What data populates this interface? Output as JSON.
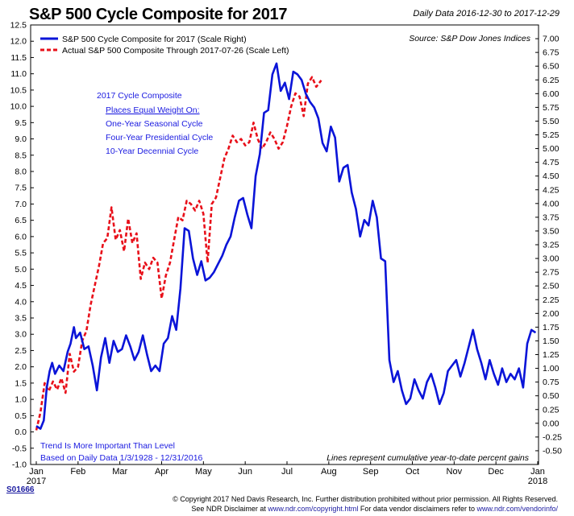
{
  "header": {
    "title": "S&P 500 Cycle Composite for 2017",
    "date_range": "Daily Data 2016-12-30 to 2017-12-29"
  },
  "chart_data": {
    "type": "line",
    "title": "S&P 500 Cycle Composite for 2017",
    "x_tick_labels": [
      "Jan",
      "Feb",
      "Mar",
      "Apr",
      "May",
      "Jun",
      "Jul",
      "Aug",
      "Sep",
      "Oct",
      "Nov",
      "Dec",
      "Jan"
    ],
    "x_year_labels": [
      "2017",
      "2018"
    ],
    "left_axis": {
      "ylim": [
        -1.0,
        12.5
      ],
      "ticks": [
        -1.0,
        -0.5,
        0.0,
        0.5,
        1.0,
        1.5,
        2.0,
        2.5,
        3.0,
        3.5,
        4.0,
        4.5,
        5.0,
        5.5,
        6.0,
        6.5,
        7.0,
        7.5,
        8.0,
        8.5,
        9.0,
        9.5,
        10.0,
        10.5,
        11.0,
        11.5,
        12.0,
        12.5
      ]
    },
    "right_axis": {
      "ylim": [
        -0.75,
        7.25
      ],
      "ticks": [
        -0.5,
        -0.25,
        0.0,
        0.25,
        0.5,
        0.75,
        1.0,
        1.25,
        1.5,
        1.75,
        2.0,
        2.25,
        2.5,
        2.75,
        3.0,
        3.25,
        3.5,
        3.75,
        4.0,
        4.25,
        4.5,
        4.75,
        5.0,
        5.25,
        5.5,
        5.75,
        6.0,
        6.25,
        6.5,
        6.75,
        7.0
      ]
    },
    "grid": false,
    "legend_position": "top-left",
    "series": [
      {
        "name": "S&P 500 Cycle Composite for 2017 (Scale Right)",
        "axis": "right",
        "color": "#0a14d8",
        "style": "solid",
        "x": [
          0.0,
          0.1,
          0.18,
          0.25,
          0.32,
          0.38,
          0.45,
          0.55,
          0.65,
          0.75,
          0.82,
          0.9,
          0.95,
          1.05,
          1.15,
          1.25,
          1.35,
          1.45,
          1.55,
          1.65,
          1.75,
          1.85,
          1.95,
          2.05,
          2.15,
          2.25,
          2.35,
          2.45,
          2.55,
          2.65,
          2.75,
          2.85,
          2.95,
          3.05,
          3.15,
          3.25,
          3.35,
          3.45,
          3.55,
          3.65,
          3.75,
          3.85,
          3.95,
          4.05,
          4.15,
          4.25,
          4.35,
          4.45,
          4.55,
          4.65,
          4.75,
          4.85,
          4.95,
          5.05,
          5.15,
          5.25,
          5.35,
          5.45,
          5.55,
          5.65,
          5.75,
          5.85,
          5.95,
          6.05,
          6.15,
          6.25,
          6.35,
          6.45,
          6.55,
          6.65,
          6.75,
          6.85,
          6.95,
          7.05,
          7.15,
          7.25,
          7.35,
          7.45,
          7.55,
          7.65,
          7.75,
          7.85,
          7.95,
          8.05,
          8.15,
          8.25,
          8.35,
          8.45,
          8.55,
          8.65,
          8.75,
          8.85,
          8.95,
          9.05,
          9.15,
          9.25,
          9.35,
          9.45,
          9.55,
          9.65,
          9.75,
          9.85,
          9.95,
          10.05,
          10.15,
          10.25,
          10.35,
          10.45,
          10.55,
          10.65,
          10.75,
          10.85,
          10.95,
          11.05,
          11.15,
          11.25,
          11.35,
          11.45,
          11.55,
          11.65,
          11.75,
          11.85,
          11.95
        ],
        "y": [
          -0.05,
          -0.1,
          0.05,
          0.65,
          0.95,
          1.1,
          0.9,
          1.05,
          0.95,
          1.3,
          1.45,
          1.75,
          1.55,
          1.65,
          1.35,
          1.4,
          1.05,
          0.6,
          1.2,
          1.55,
          1.1,
          1.5,
          1.3,
          1.35,
          1.6,
          1.4,
          1.15,
          1.3,
          1.6,
          1.25,
          0.95,
          1.05,
          0.95,
          1.45,
          1.55,
          1.95,
          1.7,
          2.45,
          3.55,
          3.5,
          3.0,
          2.7,
          2.95,
          2.6,
          2.65,
          2.75,
          2.9,
          3.05,
          3.25,
          3.4,
          3.75,
          4.05,
          4.1,
          3.8,
          3.55,
          4.5,
          4.9,
          5.65,
          5.7,
          6.35,
          6.55,
          6.05,
          6.2,
          5.9,
          6.4,
          6.35,
          6.25,
          6.0,
          5.85,
          5.75,
          5.55,
          5.1,
          4.95,
          5.4,
          5.2,
          4.4,
          4.65,
          4.7,
          4.2,
          3.9,
          3.4,
          3.7,
          3.6,
          4.05,
          3.75,
          3.0,
          2.95,
          1.15,
          0.75,
          0.95,
          0.6,
          0.35,
          0.45,
          0.8,
          0.6,
          0.45,
          0.75,
          0.9,
          0.65,
          0.35,
          0.55,
          0.95,
          1.05,
          1.15,
          0.85,
          1.1,
          1.4,
          1.7,
          1.35,
          1.1,
          0.8,
          1.15,
          0.9,
          0.7,
          1.0,
          0.75,
          0.9,
          0.8,
          1.0,
          0.65,
          1.45,
          1.7,
          1.65
        ],
        "note_values_in": "right scale units"
      },
      {
        "name": "Actual S&P 500 Composite Through 2017-07-26 (Scale Left)",
        "axis": "left",
        "color": "#e8101a",
        "style": "dashed",
        "x": [
          0.0,
          0.1,
          0.2,
          0.3,
          0.4,
          0.5,
          0.6,
          0.7,
          0.8,
          0.9,
          1.0,
          1.1,
          1.2,
          1.3,
          1.4,
          1.5,
          1.6,
          1.7,
          1.8,
          1.9,
          2.0,
          2.1,
          2.2,
          2.3,
          2.4,
          2.5,
          2.6,
          2.7,
          2.8,
          2.9,
          3.0,
          3.1,
          3.2,
          3.3,
          3.4,
          3.5,
          3.6,
          3.7,
          3.8,
          3.9,
          4.0,
          4.1,
          4.2,
          4.3,
          4.4,
          4.5,
          4.6,
          4.7,
          4.8,
          4.9,
          5.0,
          5.1,
          5.2,
          5.3,
          5.4,
          5.5,
          5.6,
          5.7,
          5.8,
          5.9,
          6.0,
          6.1,
          6.2,
          6.3,
          6.4,
          6.5,
          6.6,
          6.7,
          6.82
        ],
        "y": [
          0.05,
          0.6,
          1.5,
          1.25,
          1.55,
          1.3,
          1.65,
          1.2,
          2.4,
          1.85,
          2.0,
          2.8,
          3.1,
          3.9,
          4.5,
          5.1,
          5.8,
          5.95,
          6.9,
          5.9,
          6.2,
          5.55,
          6.55,
          5.8,
          6.1,
          4.7,
          5.2,
          5.0,
          5.35,
          5.2,
          4.1,
          4.8,
          5.2,
          5.9,
          6.6,
          6.5,
          7.1,
          7.0,
          6.8,
          7.1,
          6.7,
          5.2,
          7.0,
          7.2,
          7.8,
          8.4,
          8.7,
          9.1,
          8.9,
          9.0,
          8.8,
          8.9,
          9.5,
          9.0,
          8.7,
          8.9,
          9.2,
          9.0,
          8.7,
          8.9,
          9.4,
          10.0,
          10.4,
          10.3,
          9.7,
          10.7,
          10.9,
          10.6,
          10.8
        ]
      }
    ],
    "x_axis_note": "x values are month index (0 = start of Jan 2017, 12 = start of Jan 2018)"
  },
  "legend": {
    "items": [
      {
        "label": "S&P 500 Cycle Composite for 2017 (Scale Right)",
        "color": "#0a14d8"
      },
      {
        "label": "Actual S&P 500 Composite Through 2017-07-26 (Scale Left)",
        "color": "#e8101a"
      }
    ]
  },
  "annotations": {
    "source": "Source:  S&P Dow Jones Indices",
    "cycle_title": "2017 Cycle Composite",
    "cycle_underlined": "Places Equal Weight On:",
    "cycle_items": [
      "One-Year Seasonal Cycle",
      "Four-Year Presidential Cycle",
      "10-Year Decennial Cycle"
    ],
    "trend": "Trend Is More Important Than Level",
    "based_on": "Based on Daily Data 1/3/1928 - 12/31/2016",
    "lines_note": "Lines represent cumulative year-to-date percent gains"
  },
  "footer": {
    "code": "S01666",
    "copyright_text": "© Copyright 2017 Ned Davis Research, Inc. Further distribution prohibited without prior permission. All Rights Reserved.",
    "disclaimer_prefix": "See NDR Disclaimer at ",
    "disclaimer_link1": "www.ndr.com/copyright.html",
    "disclaimer_middle": "  For data vendor disclaimers refer to ",
    "disclaimer_link2": "www.ndr.com/vendorinfo/"
  },
  "colors": {
    "composite": "#0a14d8",
    "actual": "#e8101a",
    "annotation_text": "#1a1ae0"
  }
}
